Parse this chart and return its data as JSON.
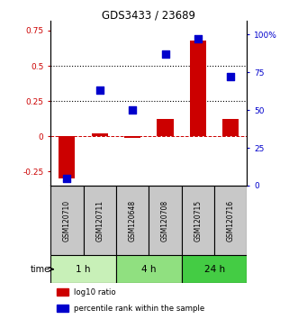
{
  "title": "GDS3433 / 23689",
  "samples": [
    "GSM120710",
    "GSM120711",
    "GSM120648",
    "GSM120708",
    "GSM120715",
    "GSM120716"
  ],
  "log10_ratio": [
    -0.3,
    0.02,
    -0.01,
    0.12,
    0.68,
    0.12
  ],
  "percentile_rank": [
    5,
    63,
    50,
    87,
    97,
    72
  ],
  "time_groups": [
    {
      "label": "1 h",
      "indices": [
        0,
        1
      ],
      "color": "#c8f0b8"
    },
    {
      "label": "4 h",
      "indices": [
        2,
        3
      ],
      "color": "#90e080"
    },
    {
      "label": "24 h",
      "indices": [
        4,
        5
      ],
      "color": "#44cc44"
    }
  ],
  "bar_color": "#cc0000",
  "dot_color": "#0000cc",
  "ylim_left": [
    -0.35,
    0.82
  ],
  "ylim_right": [
    0,
    109
  ],
  "yticks_left": [
    -0.25,
    0,
    0.25,
    0.5,
    0.75
  ],
  "yticks_right": [
    0,
    25,
    50,
    75,
    100
  ],
  "ytick_labels_right": [
    "0",
    "25",
    "50",
    "75",
    "100%"
  ],
  "dotted_lines": [
    0.25,
    0.5
  ],
  "legend_items": [
    {
      "label": "log10 ratio",
      "color": "#cc0000"
    },
    {
      "label": "percentile rank within the sample",
      "color": "#0000cc"
    }
  ],
  "time_label": "time",
  "bar_width": 0.5,
  "dot_size": 28,
  "sample_box_color": "#c8c8c8"
}
